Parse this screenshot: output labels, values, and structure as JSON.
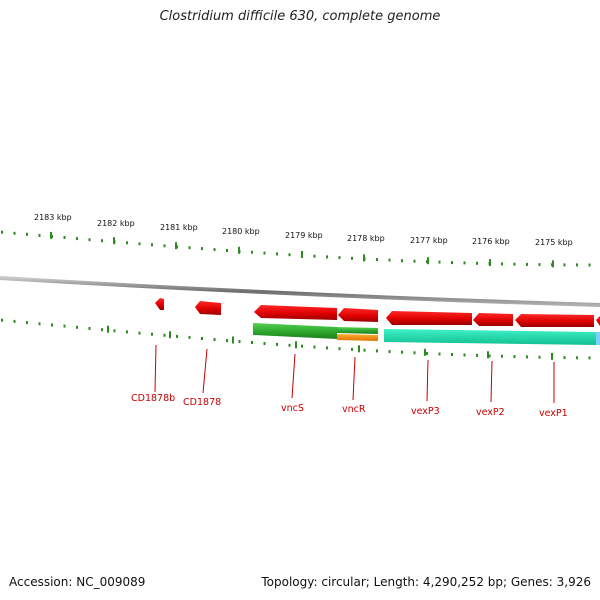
{
  "title": "Clostridium difficile 630, complete genome",
  "footer": {
    "accession": "Accession: NC_009089",
    "stats": "Topology: circular; Length: 4,290,252 bp; Genes: 3,926"
  },
  "colors": {
    "backbone": "#8c8c8c",
    "tick": "#2e8b22",
    "gene_fill": "#ff0000",
    "gene_label": "#c80000",
    "feature_green": "#3cb43c",
    "feature_orange": "#ff8c00",
    "feature_teal": "#19e6b4"
  },
  "kbp_labels": [
    "2183 kbp",
    "2182 kbp",
    "2181 kbp",
    "2180 kbp",
    "2179 kbp",
    "2178 kbp",
    "2177 kbp",
    "2176 kbp",
    "2175 kbp"
  ],
  "gene_labels": [
    "CD1878b",
    "CD1878",
    "vncS",
    "vncR",
    "vexP3",
    "vexP2",
    "vexP1"
  ]
}
